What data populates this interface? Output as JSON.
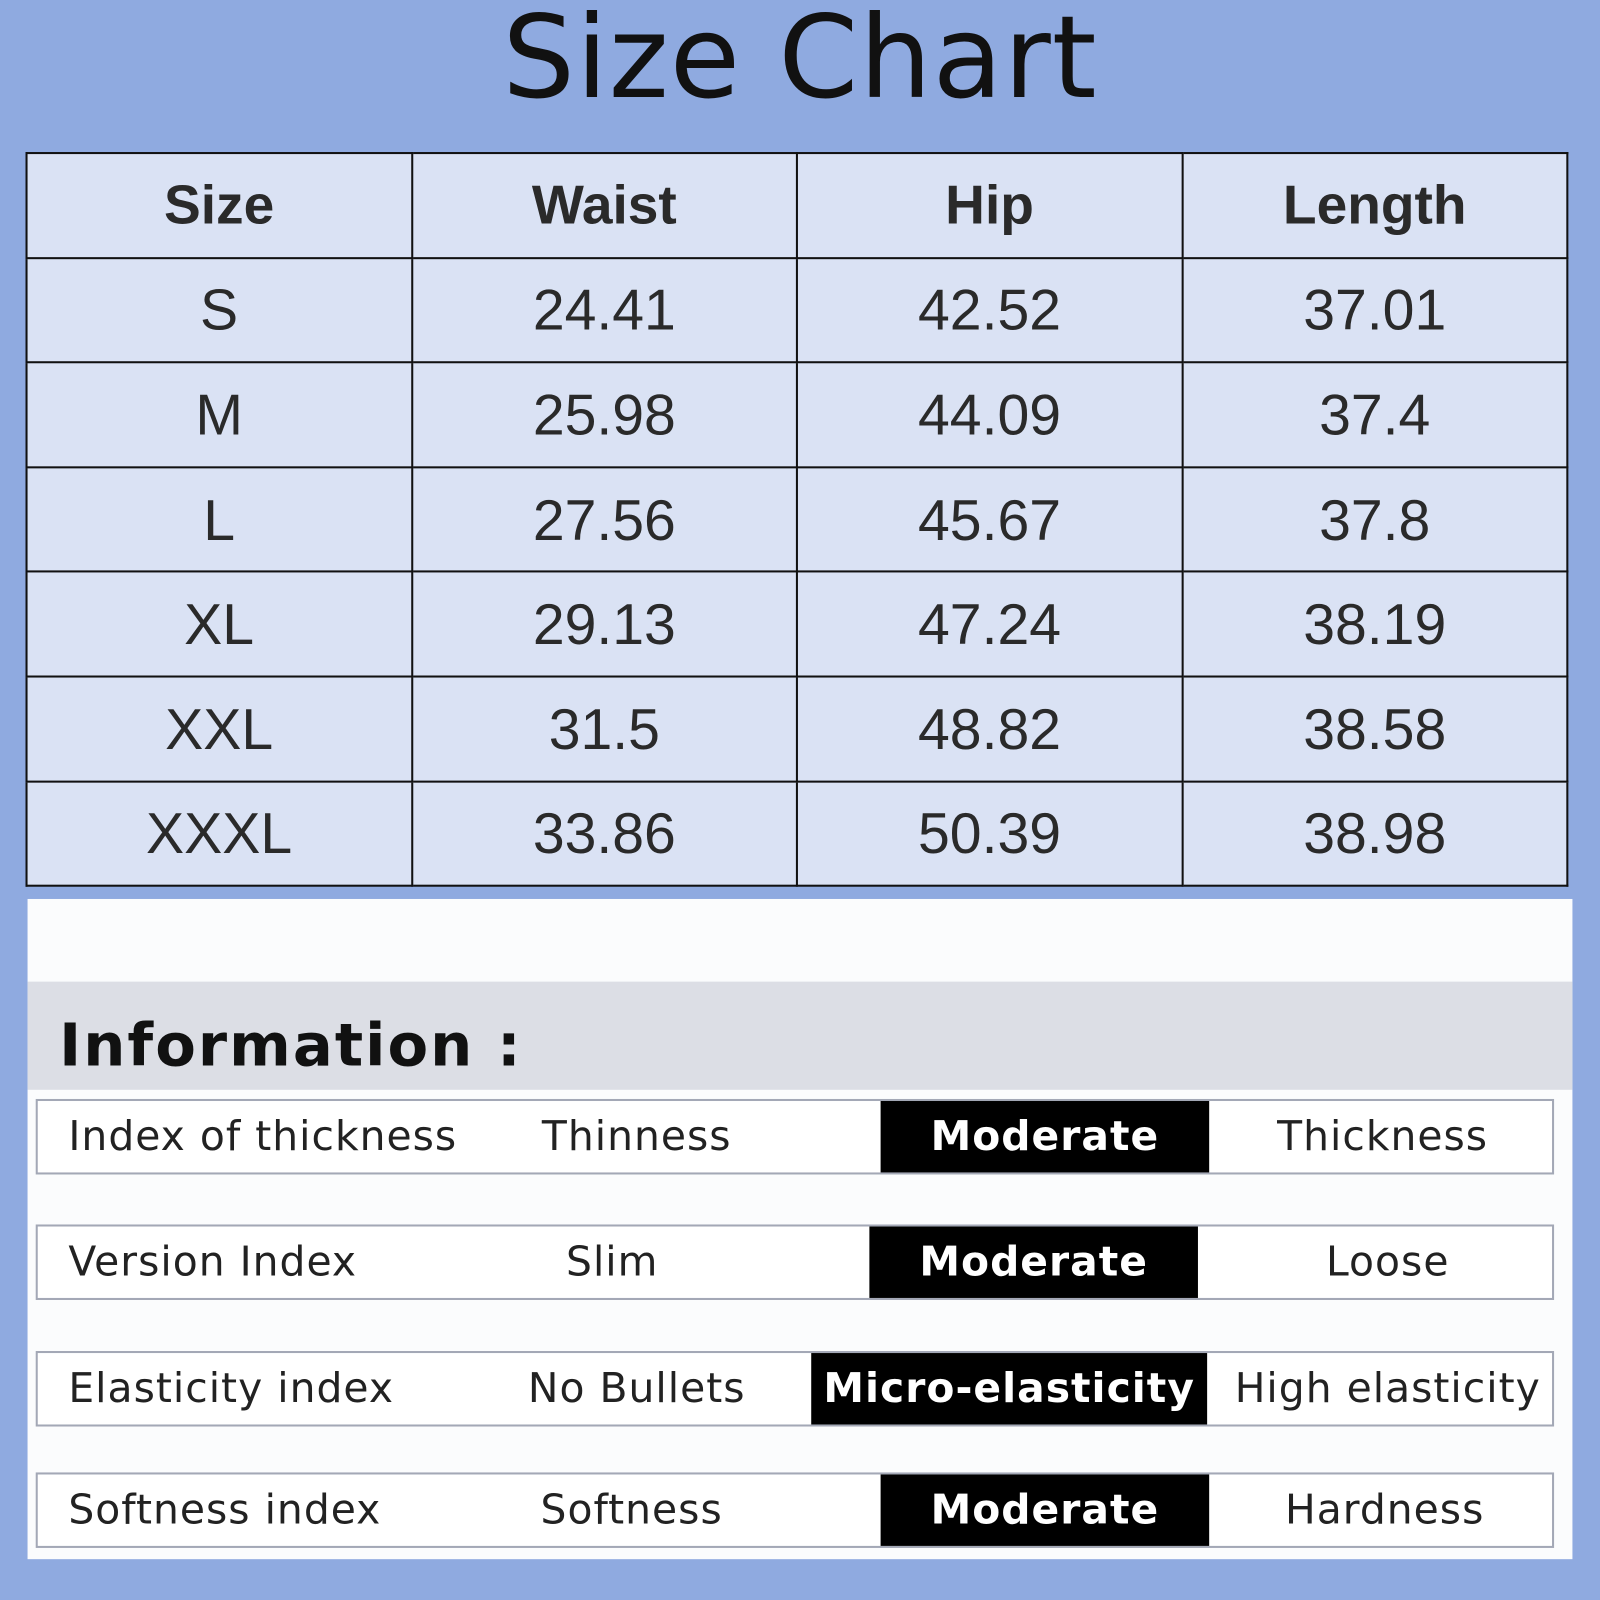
{
  "title": "Size Chart",
  "table": {
    "headers": [
      "Size",
      "Waist",
      "Hip",
      "Length"
    ],
    "rows": [
      [
        "S",
        "24.41",
        "42.52",
        "37.01"
      ],
      [
        "M",
        "25.98",
        "44.09",
        "37.4"
      ],
      [
        "L",
        "27.56",
        "45.67",
        "37.8"
      ],
      [
        "XL",
        "29.13",
        "47.24",
        "38.19"
      ],
      [
        "XXL",
        "31.5",
        "48.82",
        "38.58"
      ],
      [
        "XXXL",
        "33.86",
        "50.39",
        "38.98"
      ]
    ]
  },
  "information": {
    "heading": "Information :",
    "rows": [
      {
        "label": "Index of thickness",
        "options": [
          "Thinness",
          "Moderate",
          "Thickness"
        ],
        "selected": "Moderate"
      },
      {
        "label": "Version Index",
        "options": [
          "Slim",
          "Moderate",
          "Loose"
        ],
        "selected": "Moderate"
      },
      {
        "label": "Elasticity index",
        "options": [
          "No Bullets",
          "Micro-elasticity",
          "High elasticity"
        ],
        "selected": "Micro-elasticity"
      },
      {
        "label": "Softness index",
        "options": [
          "Softness",
          "Moderate",
          "Hardness"
        ],
        "selected": "Moderate"
      }
    ]
  },
  "colors": {
    "background": "#8faae0",
    "table_cell": "#dae2f4",
    "selected_bg": "#000000"
  }
}
